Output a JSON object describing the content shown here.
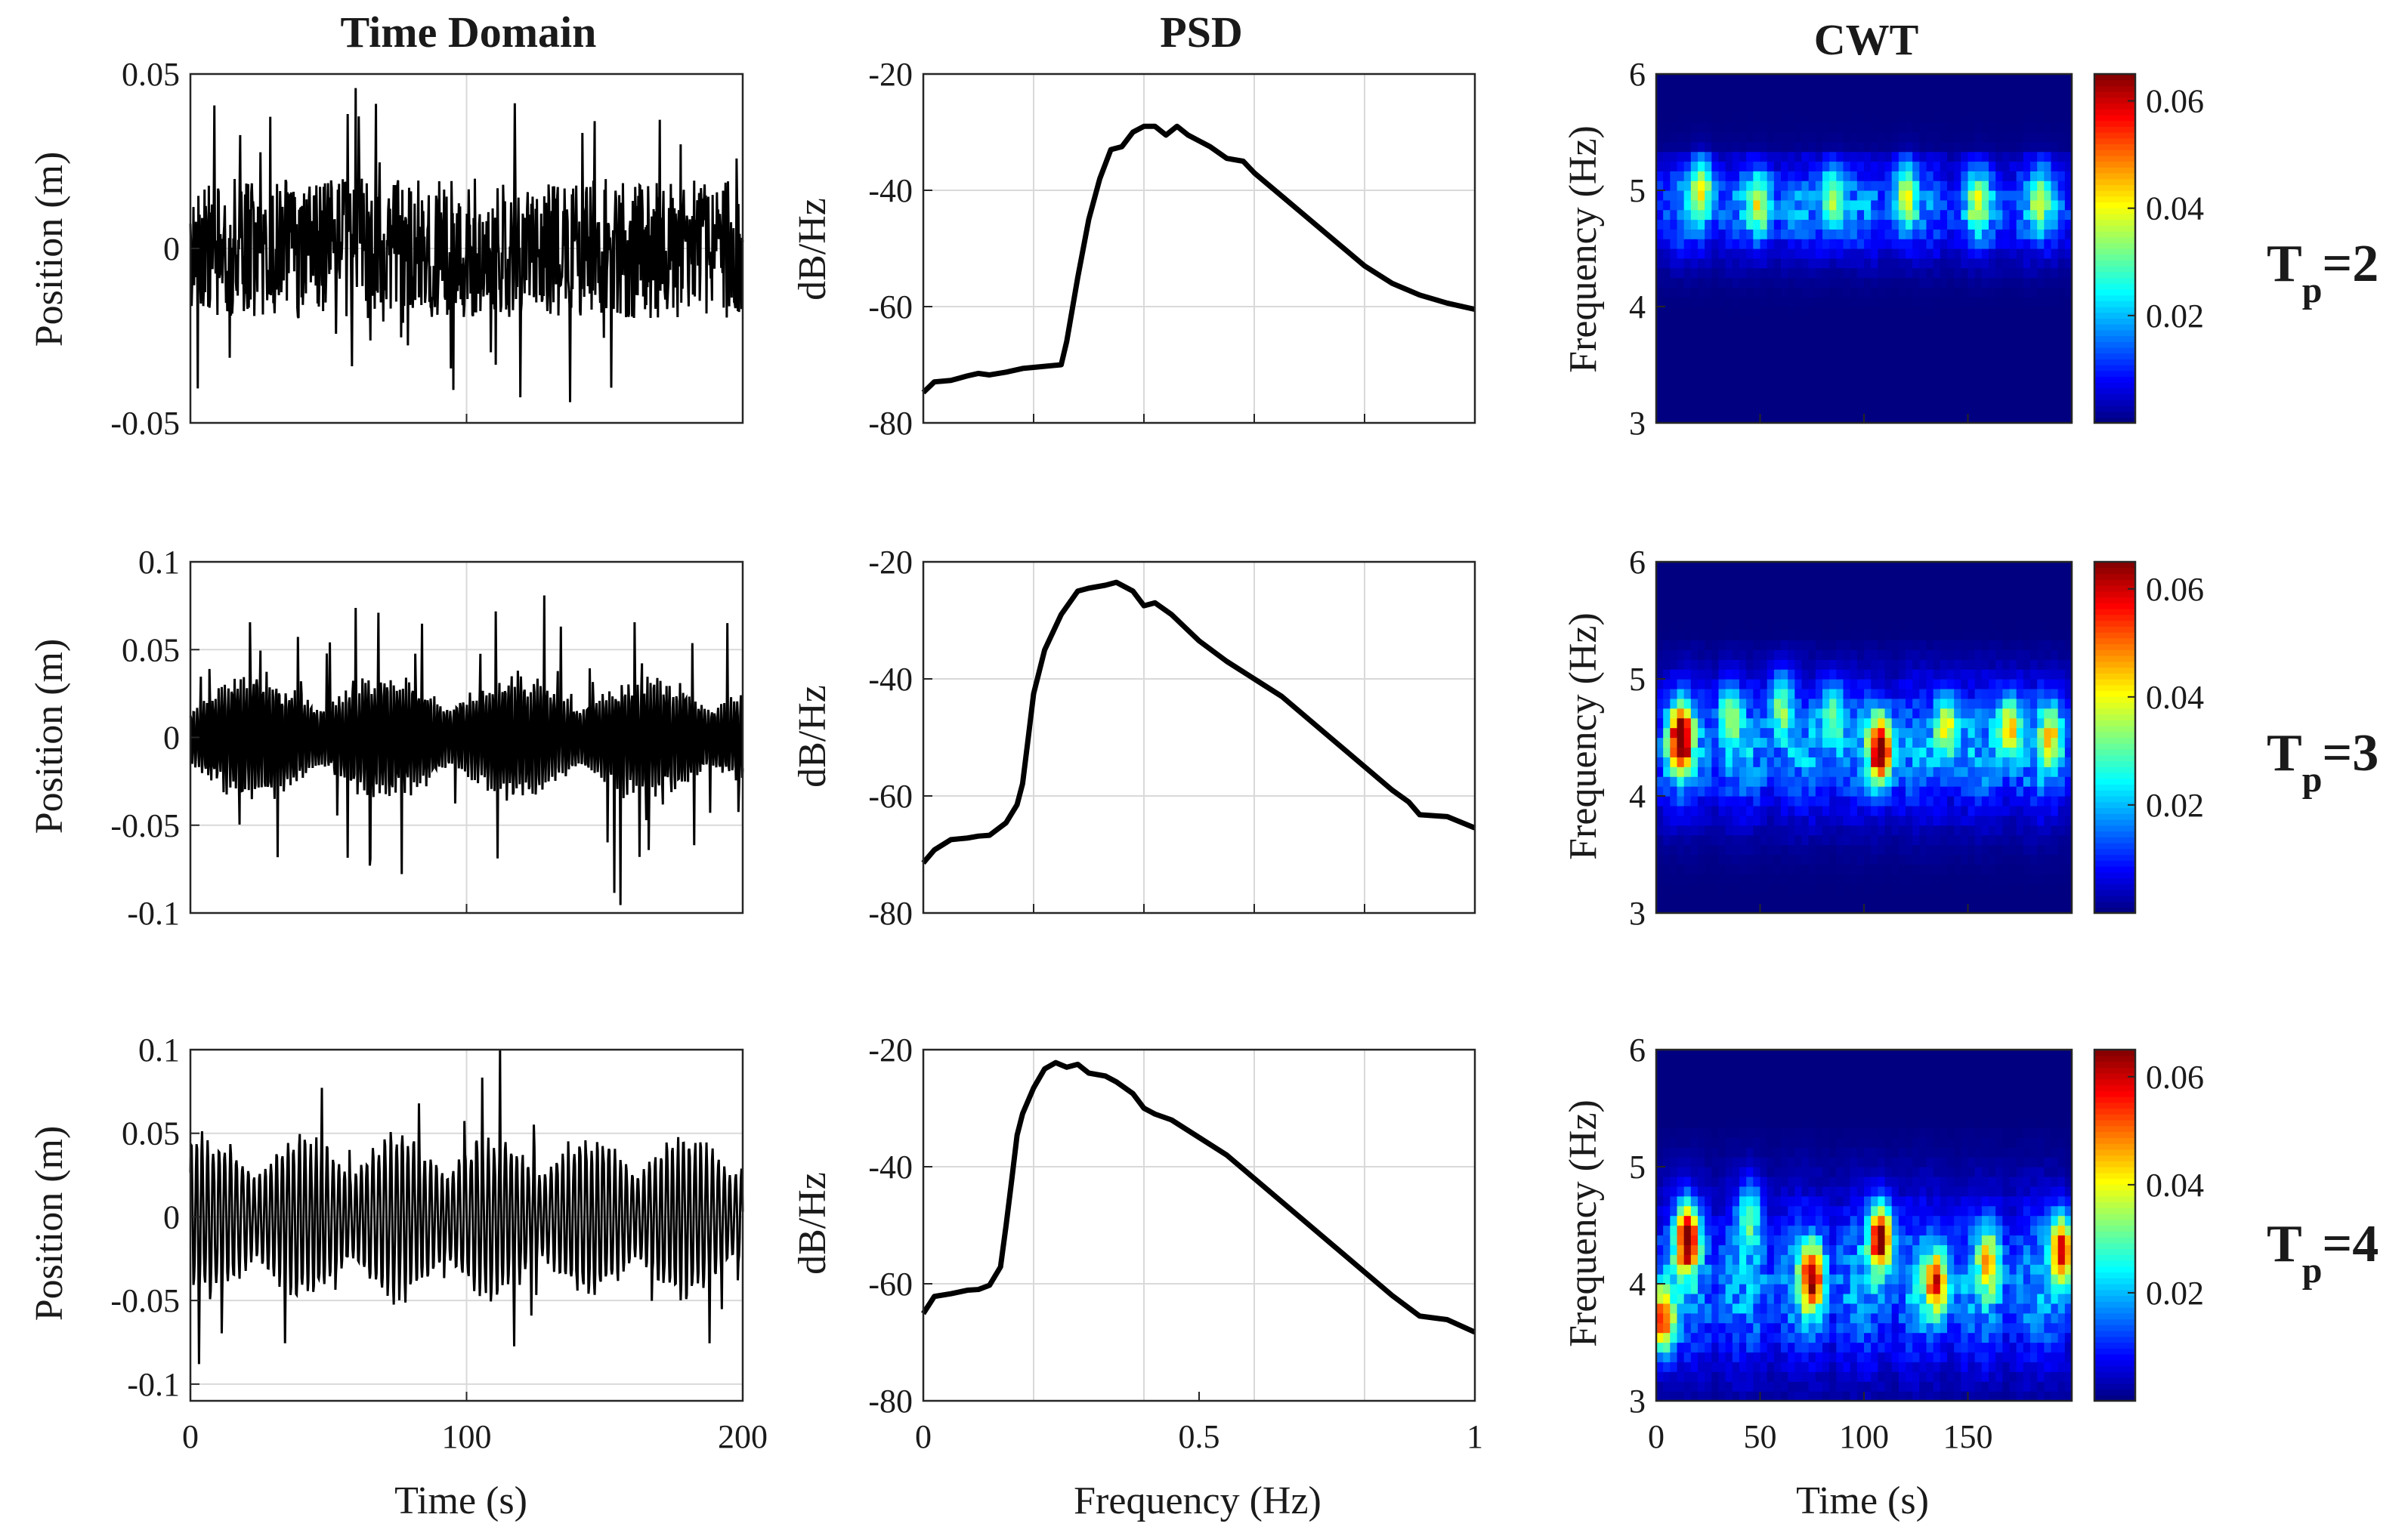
{
  "columns": {
    "time": {
      "title": "Time Domain",
      "ylabel": "Position (m)",
      "xlabel": "Time (s)"
    },
    "psd": {
      "title": "PSD",
      "ylabel": "dB/Hz",
      "xlabel": "Frequency (Hz)"
    },
    "cwt": {
      "title": "CWT",
      "ylabel": "Frequency (Hz)",
      "xlabel": "Time (s)"
    }
  },
  "rows": [
    {
      "label_main": "T",
      "label_sub": "p",
      "label_tail": "=2"
    },
    {
      "label_main": "T",
      "label_sub": "p",
      "label_tail": "=3"
    },
    {
      "label_main": "T",
      "label_sub": "p",
      "label_tail": "=4"
    }
  ],
  "colors": {
    "line": "#000000",
    "grid": "#d9d9d9",
    "text": "#1a1a1a"
  },
  "chart_data": [
    {
      "type": "line",
      "panel": "time-1",
      "title": "Time Domain",
      "ylabel": "Position (m)",
      "xlabel": "",
      "xlim": [
        0,
        200
      ],
      "ylim": [
        -0.05,
        0.05
      ],
      "xticks": [
        0,
        100,
        200
      ],
      "show_x_ticklabels": false,
      "yticks": [
        -0.05,
        0,
        0.05
      ],
      "ytick_labels": [
        "-0.05",
        "0",
        "0.05"
      ],
      "signal": {
        "style": "random",
        "amplitude": 0.02,
        "max_abs": 0.05,
        "samples": 900
      }
    },
    {
      "type": "line",
      "panel": "psd-1",
      "title": "PSD",
      "ylabel": "dB/Hz",
      "xlabel": "",
      "xlim": [
        0,
        1
      ],
      "ylim": [
        -80,
        -20
      ],
      "xticks": [
        0,
        0.2,
        0.4,
        0.6,
        0.8,
        1
      ],
      "show_x_ticklabels": false,
      "yticks": [
        -80,
        -60,
        -40,
        -20
      ],
      "ytick_labels": [
        "-80",
        "-60",
        "-40",
        "-20"
      ],
      "x": [
        0,
        0.02,
        0.05,
        0.08,
        0.1,
        0.12,
        0.15,
        0.18,
        0.25,
        0.26,
        0.28,
        0.3,
        0.32,
        0.34,
        0.36,
        0.38,
        0.4,
        0.42,
        0.44,
        0.46,
        0.48,
        0.5,
        0.52,
        0.55,
        0.58,
        0.6,
        0.65,
        0.7,
        0.75,
        0.8,
        0.85,
        0.9,
        0.95,
        1.0
      ],
      "y": [
        -75,
        -73,
        -73,
        -72.5,
        -72,
        -72,
        -71.5,
        -71,
        -70,
        -66,
        -55,
        -45,
        -38,
        -33,
        -32.5,
        -30,
        -29,
        -29,
        -30.5,
        -29,
        -30.5,
        -31.5,
        -32.5,
        -34.5,
        -35,
        -37,
        -41,
        -45,
        -49,
        -53,
        -56,
        -58,
        -59,
        -60.5
      ]
    },
    {
      "type": "heatmap",
      "panel": "cwt-1",
      "title": "CWT",
      "ylabel": "Frequency (Hz)",
      "xlabel": "",
      "xlim": [
        0,
        200
      ],
      "ylim": [
        3,
        6
      ],
      "xticks": [
        0,
        50,
        100,
        150
      ],
      "show_x_ticklabels": false,
      "yticks": [
        3,
        4,
        5,
        6
      ],
      "ytick_labels": [
        "3",
        "4",
        "5",
        "6"
      ],
      "band": {
        "center": 4.85,
        "width": 0.4,
        "base": 0.018
      },
      "peaks": [
        {
          "t": 22,
          "f": 5.05,
          "amp": 0.028
        },
        {
          "t": 50,
          "f": 4.9,
          "amp": 0.025
        },
        {
          "t": 85,
          "f": 4.95,
          "amp": 0.026
        },
        {
          "t": 120,
          "f": 5.0,
          "amp": 0.024
        },
        {
          "t": 155,
          "f": 4.9,
          "amp": 0.022
        },
        {
          "t": 185,
          "f": 4.95,
          "amp": 0.02
        }
      ],
      "colorbar": {
        "range": [
          0,
          0.065
        ],
        "ticks": [
          0.02,
          0.04,
          0.06
        ],
        "tick_labels": [
          "0.02",
          "0.04",
          "0.06"
        ]
      }
    },
    {
      "type": "line",
      "panel": "time-2",
      "title": "",
      "ylabel": "Position (m)",
      "xlabel": "",
      "xlim": [
        0,
        200
      ],
      "ylim": [
        -0.1,
        0.1
      ],
      "xticks": [
        0,
        100,
        200
      ],
      "show_x_ticklabels": false,
      "yticks": [
        -0.1,
        -0.05,
        0,
        0.05,
        0.1
      ],
      "ytick_labels": [
        "-0.1",
        "-0.05",
        "0",
        "0.05",
        "0.1"
      ],
      "signal": {
        "style": "oscillating",
        "amplitude": 0.025,
        "max_abs": 0.1,
        "samples": 900
      }
    },
    {
      "type": "line",
      "panel": "psd-2",
      "title": "",
      "ylabel": "dB/Hz",
      "xlabel": "",
      "xlim": [
        0,
        1
      ],
      "ylim": [
        -80,
        -20
      ],
      "xticks": [
        0,
        0.2,
        0.4,
        0.6,
        0.8,
        1
      ],
      "show_x_ticklabels": false,
      "yticks": [
        -80,
        -60,
        -40,
        -20
      ],
      "ytick_labels": [
        "-80",
        "-60",
        "-40",
        "-20"
      ],
      "x": [
        0,
        0.02,
        0.05,
        0.08,
        0.1,
        0.12,
        0.15,
        0.17,
        0.18,
        0.19,
        0.2,
        0.22,
        0.25,
        0.28,
        0.3,
        0.33,
        0.35,
        0.38,
        0.4,
        0.42,
        0.45,
        0.5,
        0.55,
        0.6,
        0.65,
        0.7,
        0.75,
        0.8,
        0.85,
        0.88,
        0.9,
        0.95,
        1.0
      ],
      "y": [
        -71,
        -69,
        -68,
        -67.5,
        -67,
        -66.5,
        -65,
        -62,
        -58,
        -50,
        -43,
        -35,
        -29,
        -25,
        -24.5,
        -24,
        -23.5,
        -25,
        -27.5,
        -27,
        -29,
        -33.5,
        -37,
        -40,
        -43,
        -47,
        -51,
        -55,
        -59,
        -61,
        -63,
        -64,
        -66
      ]
    },
    {
      "type": "heatmap",
      "panel": "cwt-2",
      "title": "",
      "ylabel": "Frequency (Hz)",
      "xlabel": "",
      "xlim": [
        0,
        200
      ],
      "ylim": [
        3,
        6
      ],
      "xticks": [
        0,
        50,
        100,
        150
      ],
      "show_x_ticklabels": false,
      "yticks": [
        3,
        4,
        5,
        6
      ],
      "ytick_labels": [
        "3",
        "4",
        "5",
        "6"
      ],
      "band": {
        "center": 4.4,
        "width": 0.55,
        "base": 0.02
      },
      "peaks": [
        {
          "t": 12,
          "f": 4.5,
          "amp": 0.062
        },
        {
          "t": 35,
          "f": 4.7,
          "amp": 0.022
        },
        {
          "t": 60,
          "f": 4.8,
          "amp": 0.025
        },
        {
          "t": 85,
          "f": 4.7,
          "amp": 0.024
        },
        {
          "t": 108,
          "f": 4.4,
          "amp": 0.058
        },
        {
          "t": 140,
          "f": 4.6,
          "amp": 0.03
        },
        {
          "t": 170,
          "f": 4.6,
          "amp": 0.033
        },
        {
          "t": 190,
          "f": 4.5,
          "amp": 0.028
        }
      ],
      "colorbar": {
        "range": [
          0,
          0.065
        ],
        "ticks": [
          0.02,
          0.04,
          0.06
        ],
        "tick_labels": [
          "0.02",
          "0.04",
          "0.06"
        ]
      }
    },
    {
      "type": "line",
      "panel": "time-3",
      "title": "",
      "ylabel": "Position (m)",
      "xlabel": "Time (s)",
      "xlim": [
        0,
        200
      ],
      "ylim": [
        -0.11,
        0.1
      ],
      "xticks": [
        0,
        100,
        200
      ],
      "show_x_ticklabels": true,
      "xtick_labels": [
        "0",
        "100",
        "200"
      ],
      "yticks": [
        -0.1,
        -0.05,
        0,
        0.05,
        0.1
      ],
      "ytick_labels": [
        "-0.1",
        "-0.05",
        "0",
        "0.05",
        "0.1"
      ],
      "signal": {
        "style": "smooth",
        "amplitude": 0.042,
        "max_abs": 0.1,
        "samples": 900
      }
    },
    {
      "type": "line",
      "panel": "psd-3",
      "title": "",
      "ylabel": "dB/Hz",
      "xlabel": "Frequency (Hz)",
      "xlim": [
        0,
        1
      ],
      "ylim": [
        -80,
        -20
      ],
      "xticks": [
        0,
        0.5,
        1
      ],
      "show_x_ticklabels": true,
      "xtick_labels": [
        "0",
        "0.5",
        "1"
      ],
      "grid_x": [
        0,
        0.2,
        0.4,
        0.6,
        0.8,
        1
      ],
      "yticks": [
        -80,
        -60,
        -40,
        -20
      ],
      "ytick_labels": [
        "-80",
        "-60",
        "-40",
        "-20"
      ],
      "x": [
        0,
        0.02,
        0.05,
        0.08,
        0.1,
        0.12,
        0.14,
        0.15,
        0.16,
        0.17,
        0.18,
        0.2,
        0.22,
        0.24,
        0.26,
        0.28,
        0.3,
        0.33,
        0.35,
        0.38,
        0.4,
        0.42,
        0.45,
        0.5,
        0.55,
        0.6,
        0.65,
        0.7,
        0.75,
        0.8,
        0.85,
        0.9,
        0.95,
        1.0
      ],
      "y": [
        -65,
        -62,
        -62,
        -61.5,
        -61,
        -60,
        -57,
        -50,
        -42,
        -35,
        -31,
        -27,
        -23,
        -22,
        -23,
        -22.5,
        -24,
        -24.5,
        -25.5,
        -27.5,
        -30,
        -31,
        -32,
        -35,
        -38,
        -42,
        -46,
        -50,
        -54,
        -58,
        -62,
        -65,
        -66.5,
        -68
      ]
    },
    {
      "type": "heatmap",
      "panel": "cwt-3",
      "title": "",
      "ylabel": "Frequency (Hz)",
      "xlabel": "Time (s)",
      "xlim": [
        0,
        200
      ],
      "ylim": [
        3,
        6
      ],
      "xticks": [
        0,
        50,
        100,
        150
      ],
      "show_x_ticklabels": true,
      "xtick_labels": [
        "0",
        "50",
        "100",
        "150"
      ],
      "yticks": [
        3,
        4,
        5,
        6
      ],
      "ytick_labels": [
        "3",
        "4",
        "5",
        "6"
      ],
      "band": {
        "center": 4.0,
        "width": 0.7,
        "base": 0.02
      },
      "peaks": [
        {
          "t": 3,
          "f": 3.7,
          "amp": 0.045
        },
        {
          "t": 15,
          "f": 4.4,
          "amp": 0.06
        },
        {
          "t": 45,
          "f": 4.6,
          "amp": 0.022
        },
        {
          "t": 75,
          "f": 4.05,
          "amp": 0.05
        },
        {
          "t": 108,
          "f": 4.4,
          "amp": 0.057
        },
        {
          "t": 135,
          "f": 4.0,
          "amp": 0.042
        },
        {
          "t": 160,
          "f": 4.2,
          "amp": 0.03
        },
        {
          "t": 195,
          "f": 4.3,
          "amp": 0.05
        }
      ],
      "colorbar": {
        "range": [
          0,
          0.065
        ],
        "ticks": [
          0.02,
          0.04,
          0.06
        ],
        "tick_labels": [
          "0.02",
          "0.04",
          "0.06"
        ]
      }
    }
  ]
}
